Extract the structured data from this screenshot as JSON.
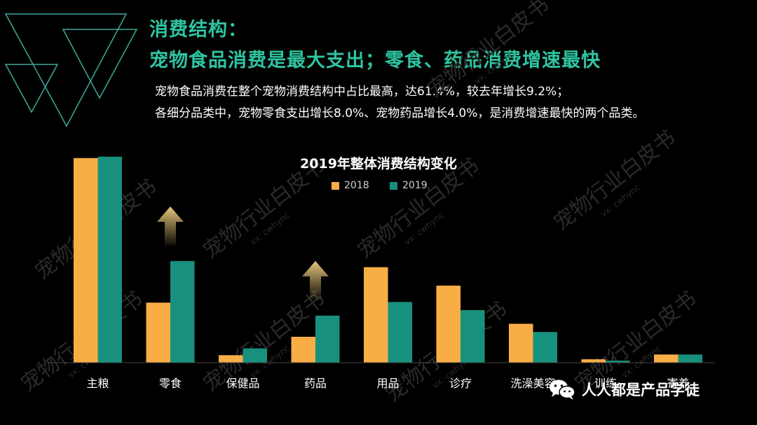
{
  "header": {
    "line1": "消费结构：",
    "line2": "宠物食品消费是最大支出；零食、药品消费增速最快"
  },
  "description": {
    "line1": "宠物食品消费在整个宠物消费结构中占比最高，达61.4%，较去年增长9.2%；",
    "line2": "各细分品类中，宠物零食支出增长8.0%、宠物药品增长4.0%，是消费增速最快的两个品类。"
  },
  "watermark": {
    "text1": "宠物行业白皮书",
    "text2": "vx: cwhync"
  },
  "footer": {
    "brand": "人人都是产品学徒",
    "icon": "wechat-icon"
  },
  "colors": {
    "series_2018": "#f9ae45",
    "series_2019": "#17917e",
    "headline": "#2ec4a0",
    "background": "#000000",
    "up_arrow": "#e6c77a"
  },
  "chart_data": {
    "type": "bar",
    "title": "2019年整体消费结构变化",
    "categories": [
      "主粮",
      "零食",
      "保健品",
      "药品",
      "用品",
      "诊疗",
      "洗澡美容",
      "训练",
      "寄养"
    ],
    "series": [
      {
        "name": "2018",
        "values": [
          300,
          88,
          11,
          38,
          140,
          113,
          57,
          5,
          12
        ]
      },
      {
        "name": "2019",
        "values": [
          302,
          149,
          21,
          69,
          89,
          77,
          45,
          3,
          12
        ]
      }
    ],
    "highlighted_categories": [
      "零食",
      "药品"
    ],
    "ylim": [
      0,
      310
    ],
    "legend_position": "top-center",
    "grid": false
  }
}
